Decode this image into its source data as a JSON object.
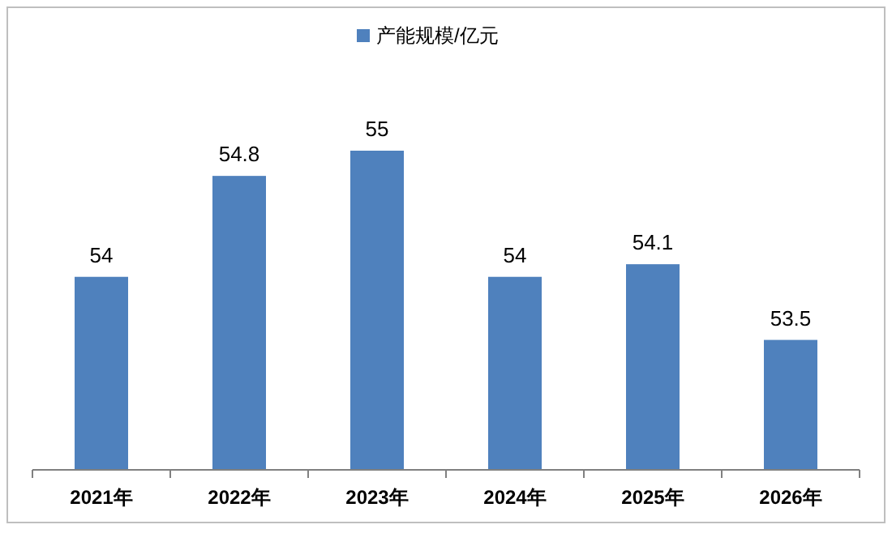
{
  "chart_data": {
    "type": "bar",
    "categories": [
      "2021年",
      "2022年",
      "2023年",
      "2024年",
      "2025年",
      "2026年"
    ],
    "series": [
      {
        "name": "产能规模/亿元",
        "color": "#4f81bd",
        "values": [
          54,
          54.8,
          55,
          54,
          54.1,
          53.5
        ]
      }
    ],
    "ylim": [
      52.47,
      55
    ],
    "tick_labels": "x",
    "data_labels": true,
    "legend": "top"
  }
}
